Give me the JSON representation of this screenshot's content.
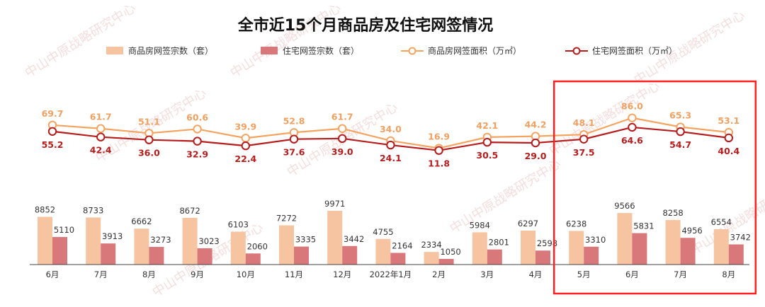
{
  "chart_data": {
    "type": "bar",
    "title": "全市近15个月商品房及住宅网签情况",
    "categories": [
      "6月",
      "7月",
      "8月",
      "9月",
      "10月",
      "11月",
      "12月",
      "2022年1月",
      "2月",
      "3月",
      "4月",
      "5月",
      "6月",
      "7月",
      "8月"
    ],
    "series": [
      {
        "name": "商品房网签宗数（套）",
        "type": "bar",
        "color": "#f7c4a2",
        "values": [
          8852,
          8733,
          6662,
          8672,
          6103,
          7272,
          9971,
          4755,
          2334,
          5984,
          6297,
          6238,
          9566,
          8258,
          6554
        ]
      },
      {
        "name": "住宅网签宗数（套）",
        "type": "bar",
        "color": "#d9787a",
        "values": [
          5110,
          3913,
          3273,
          3023,
          2060,
          3335,
          3442,
          2164,
          1050,
          2801,
          2598,
          3310,
          5831,
          4956,
          3742
        ]
      },
      {
        "name": "商品房网签面积（万㎡）",
        "type": "line",
        "color": "#f4a460",
        "values": [
          69.7,
          61.7,
          51.1,
          60.6,
          39.9,
          52.8,
          61.7,
          34.0,
          16.9,
          42.1,
          44.2,
          48.1,
          86.0,
          65.3,
          53.1
        ]
      },
      {
        "name": "住宅网签面积（万㎡）",
        "type": "line",
        "color": "#b71c1c",
        "values": [
          55.2,
          42.4,
          36.0,
          32.9,
          22.4,
          37.6,
          39.0,
          24.1,
          11.8,
          30.5,
          29.0,
          37.5,
          64.6,
          54.7,
          40.4
        ]
      }
    ],
    "highlight": {
      "from_category_index": 11,
      "to_category_index": 14,
      "color": "#ff2020"
    }
  },
  "watermark": "中山中原战略研究中心"
}
